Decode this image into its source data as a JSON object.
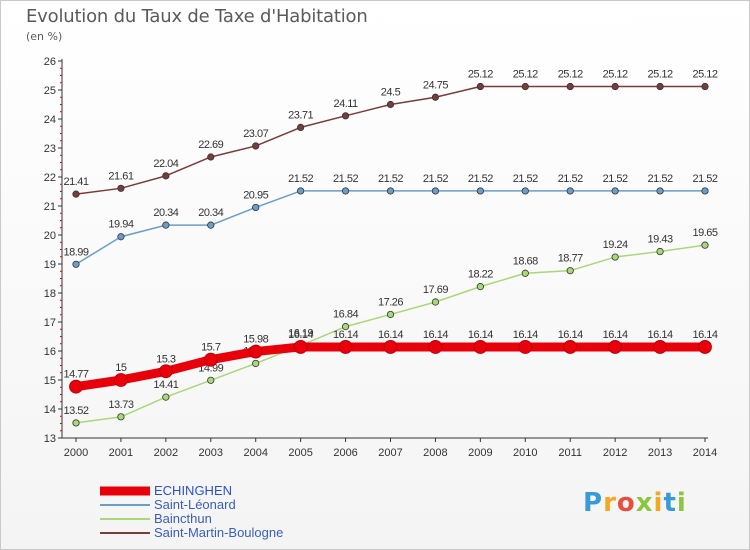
{
  "header": {
    "title": "Evolution du Taux de Taxe d'Habitation",
    "subtitle": "(en %)"
  },
  "brand": {
    "text": "Proxiti",
    "letters": [
      {
        "ch": "P",
        "color": "#3a9ad9"
      },
      {
        "ch": "r",
        "color": "#f5a623"
      },
      {
        "ch": "o",
        "color": "#e94e3c"
      },
      {
        "ch": "x",
        "color": "#8cc63f"
      },
      {
        "ch": "i",
        "color": "#f5a623"
      },
      {
        "ch": "t",
        "color": "#3a9ad9"
      },
      {
        "ch": "i",
        "color": "#8cc63f"
      }
    ]
  },
  "chart_data": {
    "type": "line",
    "title": "Evolution du Taux de Taxe d'Habitation",
    "ylabel": "(en %)",
    "xlabel": "",
    "x": [
      "2000",
      "2001",
      "2002",
      "2003",
      "2004",
      "2005",
      "2006",
      "2007",
      "2008",
      "2009",
      "2010",
      "2011",
      "2012",
      "2013",
      "2014"
    ],
    "ylim": [
      13,
      26
    ],
    "yticks": [
      13,
      14,
      15,
      16,
      17,
      18,
      19,
      20,
      21,
      22,
      23,
      24,
      25,
      26
    ],
    "grid": false,
    "legend_position": "bottom-left",
    "series": [
      {
        "name": "ECHINGHEN",
        "color": "#e8000b",
        "emphasis": true,
        "values": [
          14.77,
          15,
          15.3,
          15.7,
          15.98,
          16.14,
          16.14,
          16.14,
          16.14,
          16.14,
          16.14,
          16.14,
          16.14,
          16.14,
          16.14
        ],
        "labels": [
          "14.77",
          "15",
          "15.3",
          "15.7",
          "15.98",
          "16.14",
          "16.14",
          "16.14",
          "16.14",
          "16.14",
          "16.14",
          "16.14",
          "16.14",
          "16.14",
          "16.14"
        ]
      },
      {
        "name": "Saint-Léonard",
        "color": "#6a9ec9",
        "emphasis": false,
        "values": [
          18.99,
          19.94,
          20.34,
          20.34,
          20.95,
          21.52,
          21.52,
          21.52,
          21.52,
          21.52,
          21.52,
          21.52,
          21.52,
          21.52,
          21.52
        ],
        "labels": [
          "18.99",
          "19.94",
          "20.34",
          "20.34",
          "20.95",
          "21.52",
          "21.52",
          "21.52",
          "21.52",
          "21.52",
          "21.52",
          "21.52",
          "21.52",
          "21.52",
          "21.52"
        ]
      },
      {
        "name": "Baincthun",
        "color": "#a8d878",
        "emphasis": false,
        "values": [
          13.52,
          13.73,
          14.41,
          14.99,
          15.57,
          16.19,
          16.84,
          17.26,
          17.69,
          18.22,
          18.68,
          18.77,
          19.24,
          19.43,
          19.65
        ],
        "labels": [
          "13.52",
          "13.73",
          "14.41",
          "14.99",
          "15.57",
          "16.19",
          "16.84",
          "17.26",
          "17.69",
          "18.22",
          "18.68",
          "18.77",
          "19.24",
          "19.43",
          "19.65"
        ]
      },
      {
        "name": "Saint-Martin-Boulogne",
        "color": "#7a3b3b",
        "emphasis": false,
        "values": [
          21.41,
          21.61,
          22.04,
          22.69,
          23.07,
          23.71,
          24.11,
          24.5,
          24.75,
          25.12,
          25.12,
          25.12,
          25.12,
          25.12,
          25.12
        ],
        "labels": [
          "21.41",
          "21.61",
          "22.04",
          "22.69",
          "23.07",
          "23.71",
          "24.11",
          "24.5",
          "24.75",
          "25.12",
          "25.12",
          "25.12",
          "25.12",
          "25.12",
          "25.12"
        ]
      }
    ]
  }
}
